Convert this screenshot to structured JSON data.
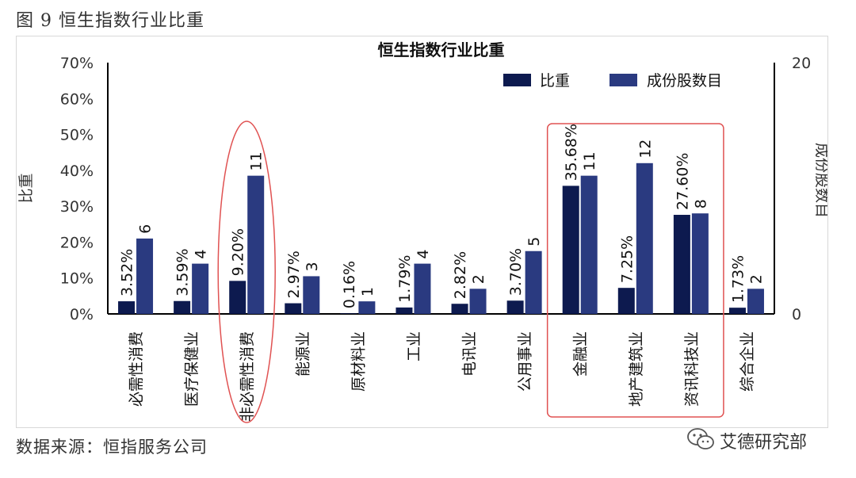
{
  "figure_caption": "图 9 恒生指数行业比重",
  "source_text": "数据来源：恒指服务公司",
  "watermark": {
    "text": "艾德研究部",
    "icon": "wechat-icon"
  },
  "colors": {
    "weight_bar": "#0d1a4f",
    "count_bar": "#2a3a80",
    "highlight_outline": "#e05252",
    "axis": "#000000",
    "text": "#333333"
  },
  "chart_data": {
    "type": "bar",
    "title": "恒生指数行业比重",
    "ylabel": "比重",
    "y2label": "成份股数目",
    "categories": [
      "必需性消费",
      "医疗保健业",
      "非必需性消费",
      "能源业",
      "原材料业",
      "工业",
      "电讯业",
      "公用事业",
      "金融业",
      "地产建筑业",
      "资讯科技业",
      "综合企业"
    ],
    "ylim": [
      0,
      70
    ],
    "yticks": [
      "0%",
      "10%",
      "20%",
      "30%",
      "40%",
      "50%",
      "60%",
      "70%"
    ],
    "y2lim": [
      0,
      20
    ],
    "y2ticks": [
      "0",
      "20"
    ],
    "legend_position": "top-right",
    "series": [
      {
        "name": "比重",
        "axis": "left",
        "values": [
          3.52,
          3.59,
          9.2,
          2.97,
          0.16,
          1.79,
          2.82,
          3.7,
          35.68,
          7.25,
          27.6,
          1.73
        ],
        "labels": [
          "3.52%",
          "3.59%",
          "9.20%",
          "2.97%",
          "0.16%",
          "1.79%",
          "2.82%",
          "3.70%",
          "35.68%",
          "7.25%",
          "27.60%",
          "1.73%"
        ]
      },
      {
        "name": "成份股数目",
        "axis": "right",
        "values": [
          6,
          4,
          11,
          3,
          1,
          4,
          2,
          5,
          11,
          12,
          8,
          2
        ],
        "labels": [
          "6",
          "4",
          "11",
          "3",
          "1",
          "4",
          "2",
          "5",
          "11",
          "12",
          "8",
          "2"
        ]
      }
    ],
    "highlights": [
      {
        "shape": "ellipse",
        "categories": [
          "非必需性消费"
        ]
      },
      {
        "shape": "rect",
        "categories": [
          "金融业",
          "地产建筑业",
          "资讯科技业"
        ]
      }
    ]
  }
}
